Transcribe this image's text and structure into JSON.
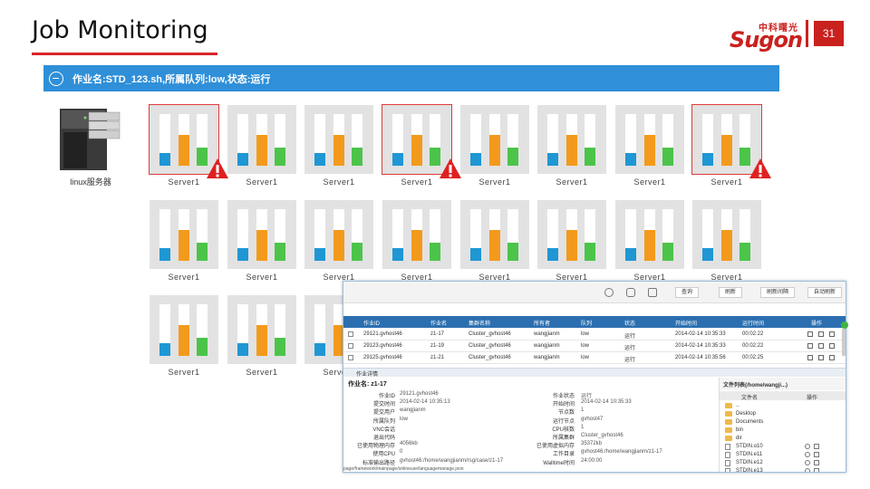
{
  "slide": {
    "title": "Job Monitoring",
    "page_number": "31",
    "logo_cn": "中科曙光",
    "logo_en": "Sugon",
    "accent_color": "#d9262b"
  },
  "job_bar": {
    "text": "作业名:STD_123.sh,所属队列:low,状态:运行",
    "color": "#2f8fd8"
  },
  "rack": {
    "label": "linux服务器"
  },
  "servers": {
    "label": "Server1",
    "colors": {
      "blue": "#1f97d4",
      "orange": "#f39a1c",
      "green": "#4cc44a"
    },
    "levels": {
      "blue": 0.25,
      "orange": 0.6,
      "green": 0.35
    },
    "alerts": [
      0,
      3,
      7
    ]
  },
  "window": {
    "toolbar": {
      "buttons": [
        "查询",
        "刷新",
        "刷新间隔",
        "自动刷新"
      ]
    },
    "table": {
      "columns": [
        "作业ID",
        "作业名",
        "集群名称",
        "所有者",
        "队列",
        "状态",
        "开始时间",
        "运行时间",
        "操作"
      ],
      "rows": [
        [
          "29121.gvhost46",
          "z1-17",
          "Cluster_gvhost46",
          "wangjianm",
          "low",
          "运行",
          "2014-02-14 10:35:33",
          "00:02:22"
        ],
        [
          "29123.gvhost46",
          "z1-19",
          "Cluster_gvhost46",
          "wangjianm",
          "low",
          "运行",
          "2014-02-14 10:35:33",
          "00:02:22"
        ],
        [
          "29125.gvhost46",
          "z1-21",
          "Cluster_gvhost46",
          "wangjianm",
          "low",
          "运行",
          "2014-02-14 10:35:56",
          "00:02:25"
        ]
      ]
    },
    "detail_title": "作业详情",
    "job_name": "作业名: z1-17",
    "left_fields": [
      [
        "作业ID",
        "29121.gvhost46"
      ],
      [
        "提交时间",
        "2014-02-14 10:35:13"
      ],
      [
        "提交用户",
        "wangjianm"
      ],
      [
        "所属队列",
        "low"
      ],
      [
        "VNC会话",
        ""
      ],
      [
        "退出代码",
        ""
      ],
      [
        "已使用物理内存",
        "4056kb"
      ],
      [
        "使用CPU",
        "0"
      ],
      [
        "标准输出路径",
        "gvhost46:/home/wangjianm/rsg/case/z1-17"
      ]
    ],
    "right_fields": [
      [
        "作业状态",
        "运行"
      ],
      [
        "开始时间",
        "2014-02-14 10:35:33"
      ],
      [
        "节点数",
        "1"
      ],
      [
        "运行节点",
        "gvhost47"
      ],
      [
        "CPU核数",
        "1"
      ],
      [
        "所属集群",
        "Cluster_gvhost46"
      ],
      [
        "已使用虚拟内存",
        "35372kb"
      ],
      [
        "工作目录",
        "gvhost46:/home/wangjianm/z1-17"
      ],
      [
        "Walltime时间",
        "24:00:00"
      ]
    ],
    "files": {
      "header": "文件列表(/home/wangji...)",
      "columns": [
        "文件名",
        "操作"
      ],
      "items": [
        {
          "name": "..",
          "type": "folder"
        },
        {
          "name": "Desktop",
          "type": "folder"
        },
        {
          "name": "Documents",
          "type": "folder"
        },
        {
          "name": "bin",
          "type": "folder"
        },
        {
          "name": "dir",
          "type": "folder"
        },
        {
          "name": "STDIN.o10",
          "type": "file"
        },
        {
          "name": "STDIN.e11",
          "type": "file"
        },
        {
          "name": "STDIN.e12",
          "type": "file"
        },
        {
          "name": "STDIN.e13",
          "type": "file"
        }
      ]
    },
    "path": "page/framework/mainpage/onlineuse/languagemanage.json"
  }
}
